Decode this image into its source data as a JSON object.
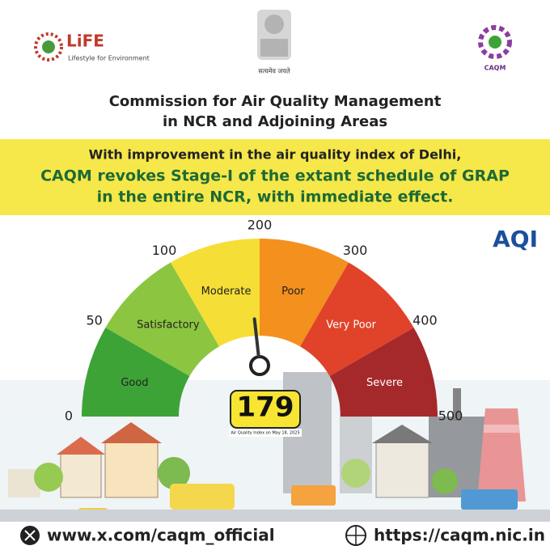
{
  "header": {
    "life_logo": "LiFE",
    "life_tagline": "Lifestyle for Environment",
    "emblem_motto": "सत्यमेव जयते",
    "caqm_logo": "CAQM",
    "title_lines": [
      "Commission for Air Quality Management",
      "in NCR and Adjoining Areas"
    ]
  },
  "headline": {
    "lines": [
      "With improvement in the air quality index of Delhi,",
      "CAQM revokes Stage-I of the extant schedule of GRAP",
      "in the entire NCR, with immediate effect."
    ]
  },
  "gauge": {
    "badge": "AQI",
    "ticks": [
      0,
      50,
      100,
      200,
      300,
      400,
      500
    ],
    "bands": [
      {
        "label": "Good",
        "color": "#3da337"
      },
      {
        "label": "Satisfactory",
        "color": "#8cc540"
      },
      {
        "label": "Moderate",
        "color": "#f5de36"
      },
      {
        "label": "Poor",
        "color": "#f4901e"
      },
      {
        "label": "Very Poor",
        "color": "#e0432a"
      },
      {
        "label": "Severe",
        "color": "#a5292b"
      }
    ],
    "value": 179,
    "caption": "Air Quality Index on May 18, 2025"
  },
  "footer": {
    "x_handle": "www.x.com/caqm_official",
    "website": "https://caqm.nic.in"
  }
}
